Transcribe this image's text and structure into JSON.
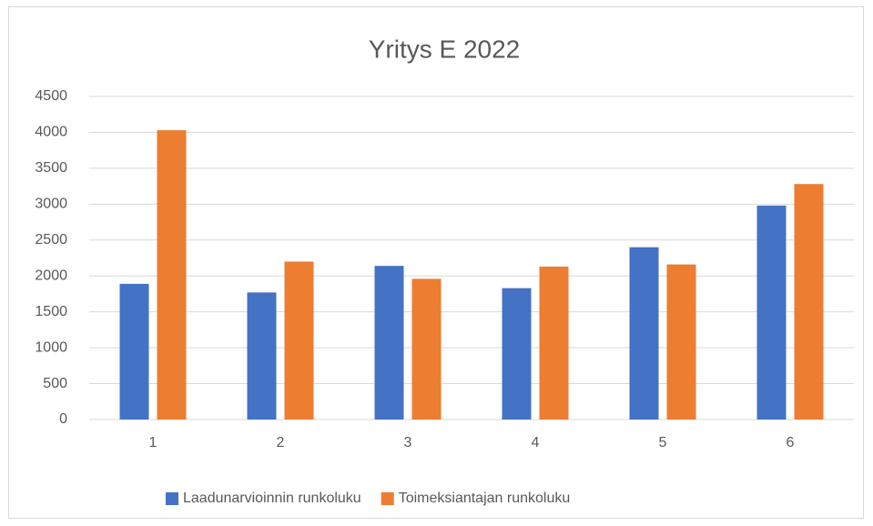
{
  "chart_data": {
    "type": "bar",
    "title": "Yritys E 2022",
    "categories": [
      "1",
      "2",
      "3",
      "4",
      "5",
      "6"
    ],
    "series": [
      {
        "name": "Laadunarvioinnin runkoluku",
        "color": "#4472c4",
        "values": [
          1890,
          1770,
          2140,
          1830,
          2400,
          2980
        ]
      },
      {
        "name": "Toimeksiantajan runkoluku",
        "color": "#ed7d31",
        "values": [
          4030,
          2200,
          1960,
          2130,
          2160,
          3280
        ]
      }
    ],
    "ylim": [
      0,
      4500
    ],
    "yticks": [
      0,
      500,
      1000,
      1500,
      2000,
      2500,
      3000,
      3500,
      4000,
      4500
    ],
    "grid": true,
    "legend": "bottom"
  }
}
